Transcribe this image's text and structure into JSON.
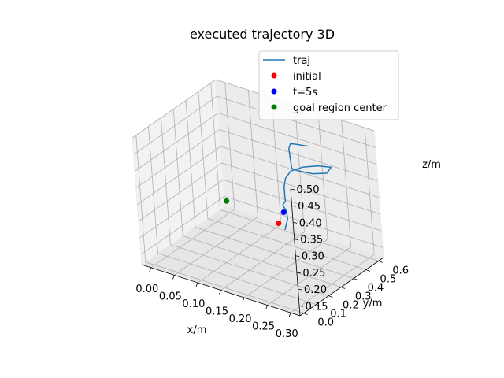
{
  "chart_data": {
    "type": "line",
    "projection": "3d",
    "title": "executed trajectory 3D",
    "xlabel": "x/m",
    "ylabel": "y/m",
    "zlabel": "z/m",
    "xlim": [
      -0.02,
      0.32
    ],
    "ylim": [
      -0.03,
      0.64
    ],
    "zlim": [
      0.12,
      0.5
    ],
    "xticks": [
      "0.00",
      "0.05",
      "0.10",
      "0.15",
      "0.20",
      "0.25",
      "0.30"
    ],
    "yticks": [
      "0.0",
      "0.1",
      "0.2",
      "0.3",
      "0.4",
      "0.5",
      "0.6"
    ],
    "zticks": [
      "0.15",
      "0.20",
      "0.25",
      "0.30",
      "0.35",
      "0.40",
      "0.45",
      "0.50"
    ],
    "grid": true,
    "legend_position": "top-right",
    "legend": [
      {
        "label": "traj",
        "kind": "line",
        "color": "#1f77b4"
      },
      {
        "label": "initial",
        "kind": "marker",
        "color": "#ff0000"
      },
      {
        "label": "t=5s",
        "kind": "marker",
        "color": "#0000ff"
      },
      {
        "label": "goal region center",
        "kind": "marker",
        "color": "#008000"
      }
    ],
    "series": [
      {
        "name": "traj",
        "kind": "line",
        "color": "#1f77b4",
        "points": [
          [
            0.2,
            0.32,
            0.232
          ],
          [
            0.202,
            0.34,
            0.262
          ],
          [
            0.2,
            0.34,
            0.285
          ],
          [
            0.197,
            0.33,
            0.3
          ],
          [
            0.197,
            0.33,
            0.305
          ],
          [
            0.197,
            0.35,
            0.308
          ],
          [
            0.195,
            0.355,
            0.32
          ],
          [
            0.195,
            0.355,
            0.35
          ],
          [
            0.198,
            0.36,
            0.375
          ],
          [
            0.205,
            0.38,
            0.395
          ],
          [
            0.22,
            0.42,
            0.403
          ],
          [
            0.24,
            0.47,
            0.403
          ],
          [
            0.26,
            0.5,
            0.4
          ],
          [
            0.255,
            0.48,
            0.385
          ],
          [
            0.235,
            0.44,
            0.385
          ],
          [
            0.215,
            0.41,
            0.392
          ],
          [
            0.205,
            0.39,
            0.4
          ],
          [
            0.203,
            0.39,
            0.43
          ],
          [
            0.203,
            0.385,
            0.46
          ],
          [
            0.206,
            0.39,
            0.475
          ],
          [
            0.215,
            0.415,
            0.47
          ],
          [
            0.228,
            0.445,
            0.463
          ]
        ]
      },
      {
        "name": "initial",
        "kind": "marker",
        "color": "#ff0000",
        "points": [
          [
            0.19,
            0.31,
            0.25
          ]
        ]
      },
      {
        "name": "t=5s",
        "kind": "marker",
        "color": "#0000ff",
        "points": [
          [
            0.2,
            0.32,
            0.285
          ]
        ]
      },
      {
        "name": "goal region center",
        "kind": "marker",
        "color": "#008000",
        "points": [
          [
            0.03,
            0.48,
            0.2
          ]
        ]
      }
    ]
  }
}
